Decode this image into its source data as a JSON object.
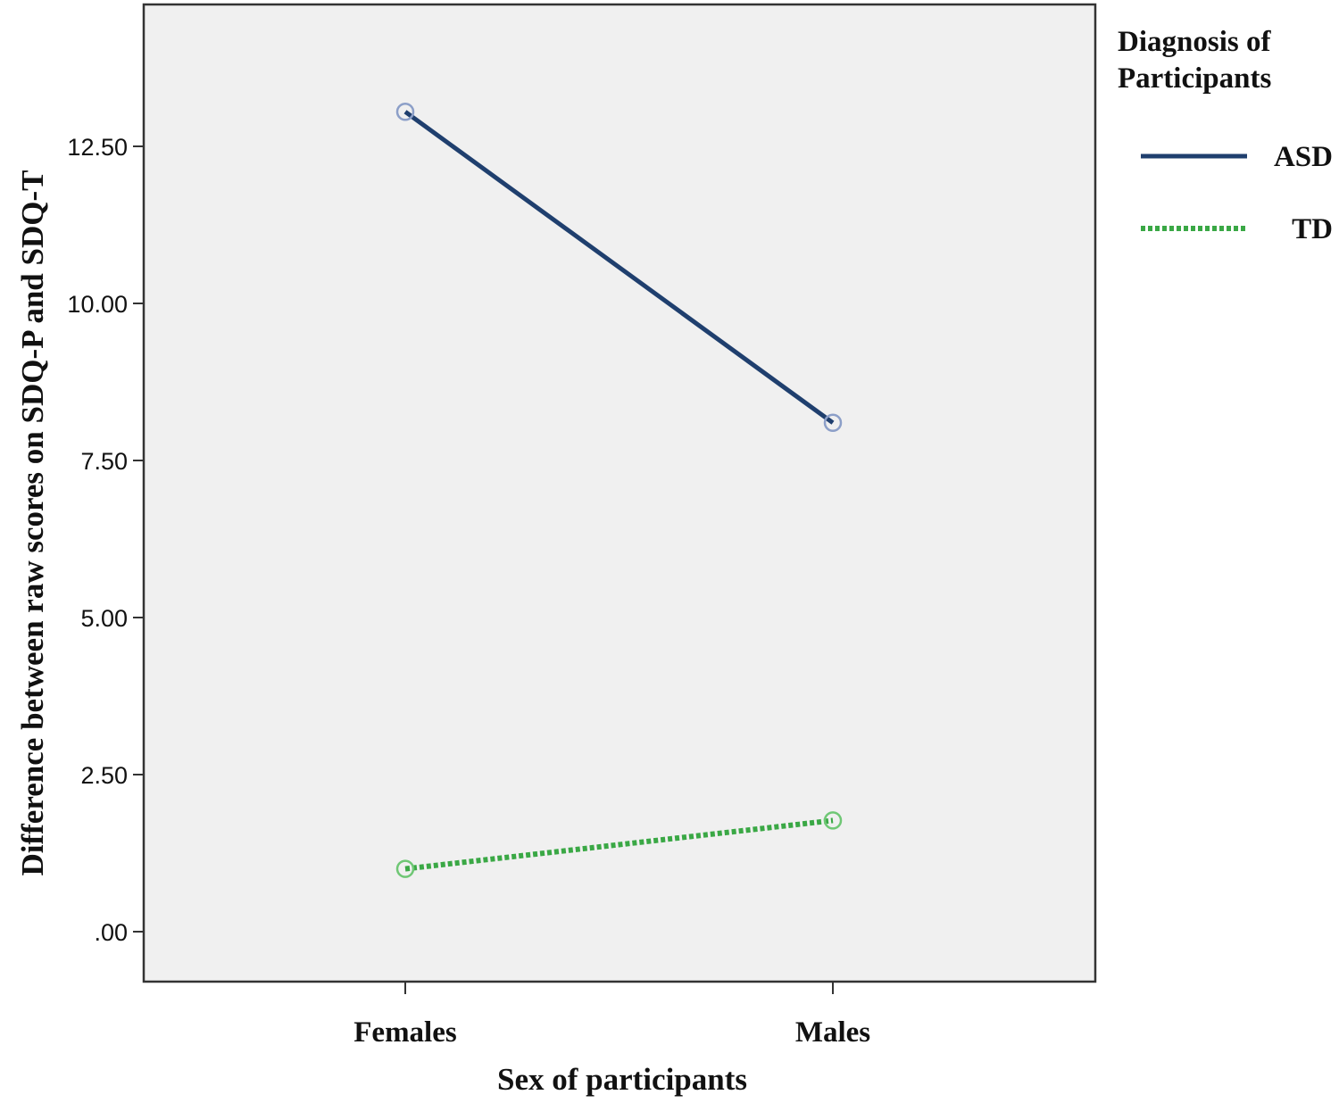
{
  "chart_data": {
    "type": "line",
    "title": "",
    "xlabel": "Sex of participants",
    "ylabel": "Difference between raw scores on SDQ-P and SDQ-T",
    "categories": [
      "Females",
      "Males"
    ],
    "ylim": [
      -0.8,
      14.8
    ],
    "yticks": [
      0,
      2.5,
      5,
      7.5,
      10,
      12.5
    ],
    "ytick_labels": [
      ".00",
      "2.50",
      "5.00",
      "7.50",
      "10.00",
      "12.50"
    ],
    "grid": false,
    "plot_background": "#f0f0f0",
    "legend": {
      "title_lines": [
        "Diagnosis of",
        "Participants"
      ],
      "placement": "right-top"
    },
    "series": [
      {
        "name": "ASD",
        "values": [
          13.05,
          8.1
        ],
        "color": "#1f3f6e",
        "marker_color": "#8c9fc8",
        "style": "solid"
      },
      {
        "name": "TD",
        "values": [
          1.0,
          1.77
        ],
        "color": "#3aa845",
        "marker_color": "#6fc775",
        "style": "dotted"
      }
    ]
  }
}
